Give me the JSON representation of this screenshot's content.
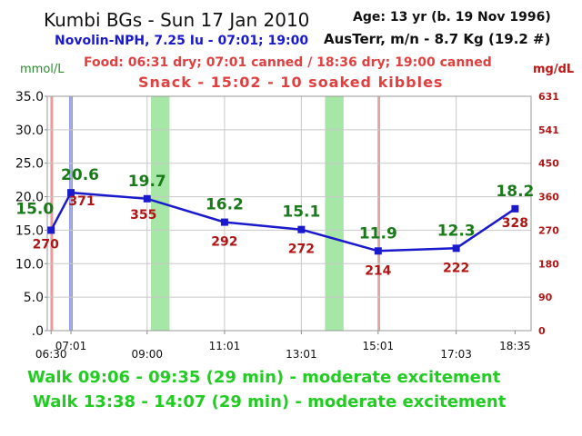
{
  "header": {
    "title": "Kumbi BGs - Sun 17 Jan 2010",
    "insulin": "Novolin-NPH, 7.25 Iu - 07:01; 19:00",
    "age": "Age: 13 yr (b. 19 Nov 1996)",
    "weight": "AusTerr, m/n - 8.7 Kg (19.2 #)",
    "food": "Food: 06:31 dry; 07:01 canned / 18:36 dry; 19:00 canned",
    "snack": "Snack - 15:02 - 10 soaked kibbles"
  },
  "footer": {
    "walk1": "Walk 09:06 - 09:35 (29 min) - moderate excitement",
    "walk2": "Walk 13:38 - 14:07 (29 min) - moderate excitement"
  },
  "colors": {
    "line": "#1a1acc",
    "marker": "#1a1acc",
    "mmol_label": "#1a7a1a",
    "mgdl_label": "#b01515",
    "food_band": "#e87878",
    "insulin_band": "#6f8ff0",
    "walk_band": "#a6e6a6",
    "grid": "#c8c8c8"
  },
  "chart_data": {
    "type": "line",
    "ylabel": "mmol/L",
    "ylabel_right": "mg/dL",
    "ylim": [
      0,
      35
    ],
    "ylim_right": [
      0,
      631
    ],
    "y_ticks": [
      ".0",
      "5.0",
      "10.0",
      "15.0",
      "20.0",
      "25.0",
      "30.0",
      "35.0"
    ],
    "y_ticks_right": [
      "0",
      "90",
      "180",
      "270",
      "360",
      "450",
      "541",
      "631"
    ],
    "x_ticks": [
      "06:30",
      "07:01",
      "09:00",
      "11:01",
      "13:01",
      "15:01",
      "17:03",
      "18:35"
    ],
    "xlim": [
      "06:24",
      "19:00"
    ],
    "grid": true,
    "series": [
      {
        "points": [
          {
            "x": "06:30",
            "y": 15.0,
            "mgdl": 270
          },
          {
            "x": "07:01",
            "y": 20.6,
            "mgdl": 371
          },
          {
            "x": "09:00",
            "y": 19.7,
            "mgdl": 355
          },
          {
            "x": "11:01",
            "y": 16.2,
            "mgdl": 292
          },
          {
            "x": "13:01",
            "y": 15.1,
            "mgdl": 272
          },
          {
            "x": "15:01",
            "y": 11.9,
            "mgdl": 214
          },
          {
            "x": "17:03",
            "y": 12.3,
            "mgdl": 222
          },
          {
            "x": "18:35",
            "y": 18.2,
            "mgdl": 328
          }
        ]
      }
    ],
    "food_times": [
      "06:31",
      "07:01",
      "15:02"
    ],
    "insulin_times": [
      "07:01"
    ],
    "walks": [
      {
        "start": "09:06",
        "end": "09:35"
      },
      {
        "start": "13:38",
        "end": "14:07"
      }
    ]
  }
}
